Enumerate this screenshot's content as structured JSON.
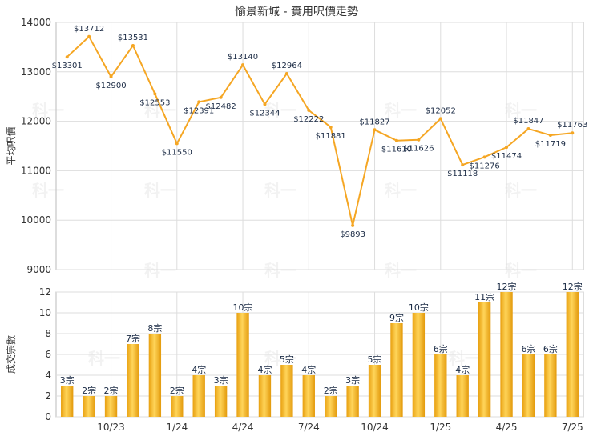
{
  "title": "愉景新城 - 實用呎價走勢",
  "colors": {
    "line": "#F5A623",
    "bar": "#F5B324",
    "grid": "#DDDDDD",
    "axis": "#333333"
  },
  "watermark": "科一",
  "chart_data": [
    {
      "type": "line",
      "ylabel": "平均呎價",
      "ylim": [
        9000,
        14000
      ],
      "yticks": [
        9000,
        10000,
        11000,
        12000,
        13000,
        14000
      ],
      "grid": true,
      "values": [
        13301,
        13712,
        12900,
        13531,
        12553,
        11550,
        12391,
        12482,
        13140,
        12344,
        12964,
        12222,
        11881,
        9893,
        11827,
        11610,
        11626,
        12052,
        11118,
        11276,
        11474,
        11847,
        11719,
        11763
      ],
      "labels": [
        "$13301",
        "$13712",
        "$12900",
        "$13531",
        "$12553",
        "$11550",
        "$12391",
        "$12482",
        "$13140",
        "$12344",
        "$12964",
        "$12222",
        "$11881",
        "$9893",
        "$11827",
        "$11610",
        "$11626",
        "$12052",
        "$11118",
        "$11276",
        "$11474",
        "$11847",
        "$11719",
        "$11763"
      ]
    },
    {
      "type": "bar",
      "ylabel": "成交宗數",
      "ylim": [
        0,
        12
      ],
      "yticks": [
        0,
        2,
        4,
        6,
        8,
        10,
        12
      ],
      "grid": true,
      "values": [
        3,
        2,
        2,
        7,
        8,
        2,
        4,
        3,
        10,
        4,
        5,
        4,
        2,
        3,
        5,
        9,
        10,
        6,
        4,
        11,
        12,
        6,
        6,
        12
      ],
      "labels": [
        "3宗",
        "2宗",
        "2宗",
        "7宗",
        "8宗",
        "2宗",
        "4宗",
        "3宗",
        "10宗",
        "4宗",
        "5宗",
        "4宗",
        "2宗",
        "3宗",
        "5宗",
        "9宗",
        "10宗",
        "6宗",
        "4宗",
        "11宗",
        "12宗",
        "6宗",
        "6宗",
        "12宗"
      ],
      "xticks": [
        {
          "index": 2,
          "label": "10/23"
        },
        {
          "index": 5,
          "label": "1/24"
        },
        {
          "index": 8,
          "label": "4/24"
        },
        {
          "index": 11,
          "label": "7/24"
        },
        {
          "index": 14,
          "label": "10/24"
        },
        {
          "index": 17,
          "label": "1/25"
        },
        {
          "index": 20,
          "label": "4/25"
        },
        {
          "index": 23,
          "label": "7/25"
        }
      ]
    }
  ]
}
